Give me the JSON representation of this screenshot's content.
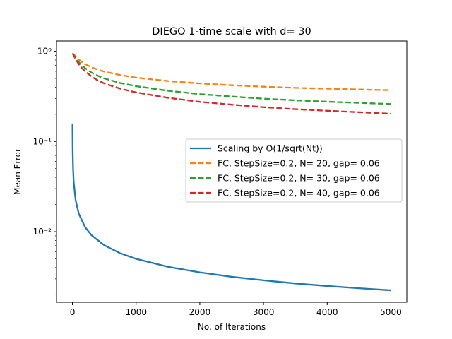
{
  "chart_data": {
    "type": "line",
    "title": "DIEGO 1-time scale with d= 30",
    "xlabel": "No. of Iterations",
    "ylabel": "Mean Error",
    "yscale": "log",
    "xlim": [
      -250,
      5250
    ],
    "ylim": [
      0.00165,
      1.3
    ],
    "x_ticks": [
      0,
      1000,
      2000,
      3000,
      4000,
      5000
    ],
    "x_tick_labels": [
      "0",
      "1000",
      "2000",
      "3000",
      "4000",
      "5000"
    ],
    "y_ticks": [
      0.01,
      0.1,
      1
    ],
    "y_tick_labels": [
      "10⁻²",
      "10⁻¹",
      "10⁰"
    ],
    "grid": false,
    "legend_position": "center-right",
    "series": [
      {
        "name": "Scaling by O(1/sqrt(Nt))",
        "color": "#1f77b4",
        "style": "solid",
        "x": [
          1,
          3,
          5,
          10,
          20,
          50,
          100,
          200,
          300,
          500,
          750,
          1000,
          1500,
          2000,
          2500,
          3000,
          3500,
          4000,
          4500,
          5000
        ],
        "y": [
          0.158,
          0.0913,
          0.0707,
          0.05,
          0.0354,
          0.0224,
          0.0158,
          0.0112,
          0.00913,
          0.00707,
          0.00577,
          0.005,
          0.00408,
          0.00354,
          0.00316,
          0.00289,
          0.00267,
          0.0025,
          0.00236,
          0.00224
        ]
      },
      {
        "name": "FC, StepSize=0.2, N= 20, gap= 0.06",
        "color": "#ff7f0e",
        "style": "dashed",
        "x": [
          1,
          50,
          100,
          150,
          200,
          300,
          400,
          500,
          750,
          1000,
          1500,
          2000,
          2500,
          3000,
          3500,
          4000,
          4500,
          5000
        ],
        "y": [
          0.95,
          0.88,
          0.81,
          0.76,
          0.72,
          0.665,
          0.625,
          0.595,
          0.545,
          0.51,
          0.468,
          0.44,
          0.42,
          0.405,
          0.393,
          0.385,
          0.377,
          0.37
        ]
      },
      {
        "name": "FC, StepSize=0.2, N= 30, gap= 0.06",
        "color": "#2ca02c",
        "style": "dashed",
        "x": [
          1,
          50,
          100,
          150,
          200,
          300,
          400,
          500,
          750,
          1000,
          1500,
          2000,
          2500,
          3000,
          3500,
          4000,
          4500,
          5000
        ],
        "y": [
          0.95,
          0.85,
          0.76,
          0.7,
          0.65,
          0.58,
          0.535,
          0.5,
          0.445,
          0.41,
          0.365,
          0.335,
          0.315,
          0.298,
          0.286,
          0.276,
          0.268,
          0.26
        ]
      },
      {
        "name": "FC, StepSize=0.2, N= 40, gap= 0.06",
        "color": "#d62728",
        "style": "dashed",
        "x": [
          1,
          50,
          100,
          150,
          200,
          300,
          400,
          500,
          750,
          1000,
          1500,
          2000,
          2500,
          3000,
          3500,
          4000,
          4500,
          5000
        ],
        "y": [
          0.95,
          0.82,
          0.72,
          0.65,
          0.6,
          0.525,
          0.475,
          0.44,
          0.385,
          0.35,
          0.305,
          0.275,
          0.256,
          0.24,
          0.228,
          0.219,
          0.211,
          0.203
        ]
      }
    ]
  }
}
